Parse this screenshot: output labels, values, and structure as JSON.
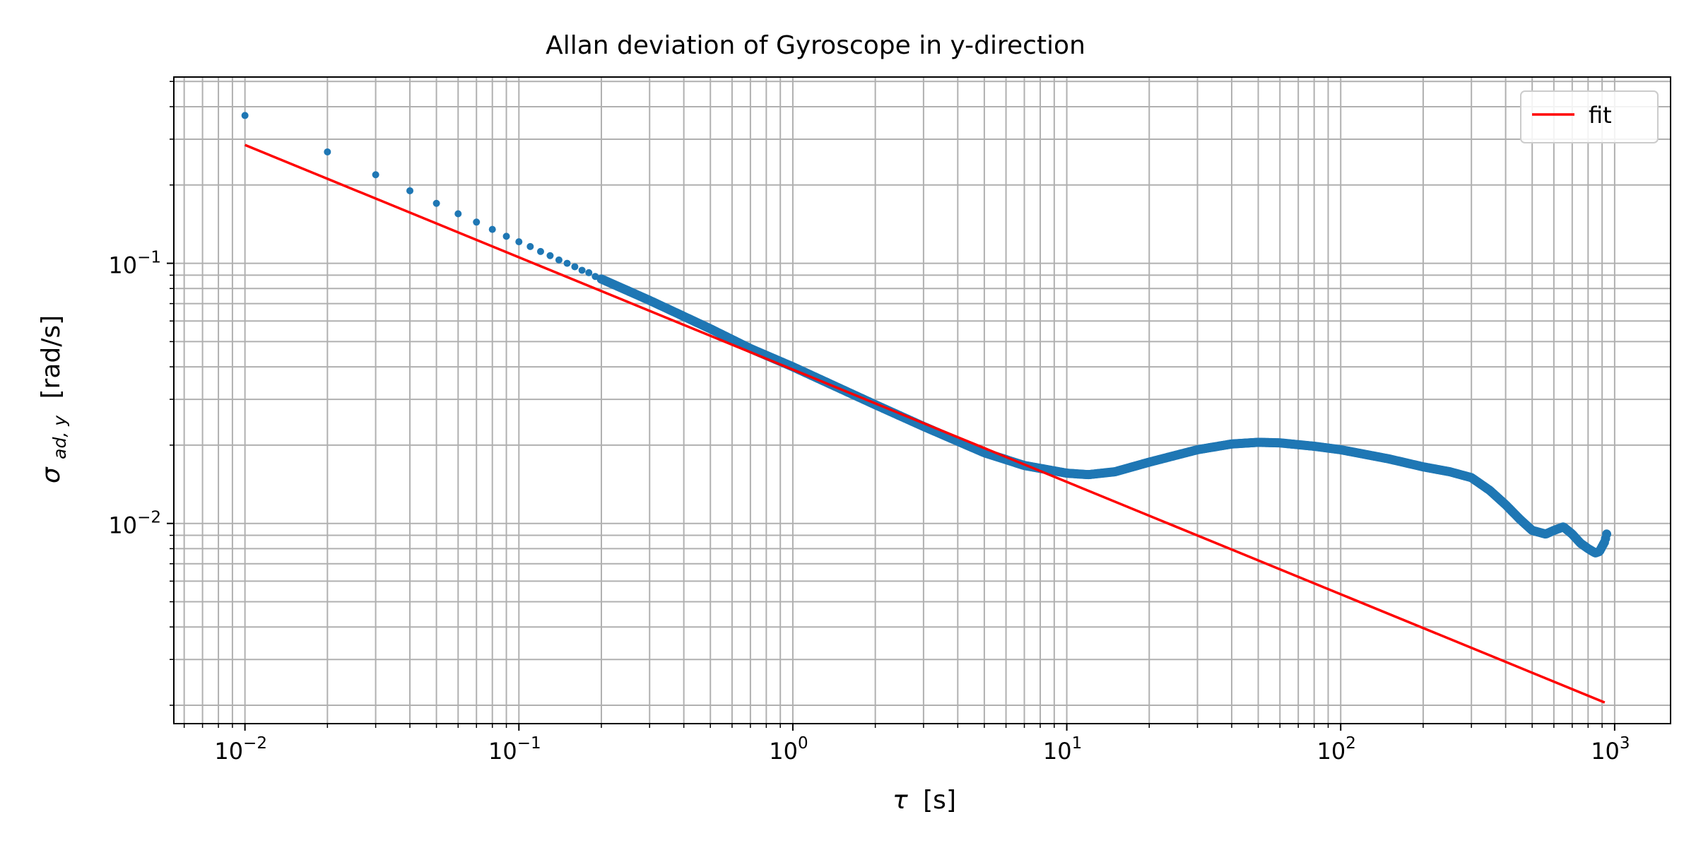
{
  "chart_data": {
    "type": "scatter",
    "title": "Allan deviation of Gyroscope in y-direction",
    "xlabel": {
      "main": "τ",
      "units": "[s]"
    },
    "ylabel": {
      "symbol": "σ",
      "subscript": "ad, y",
      "units": "[rad/s]"
    },
    "xscale": "log",
    "yscale": "log",
    "xlim": [
      0.0055,
      1600
    ],
    "ylim": [
      0.0017,
      0.52
    ],
    "grid": true,
    "grid_minor": true,
    "legend": {
      "placement": "top-right",
      "entries": [
        "fit"
      ]
    },
    "x_ticks": [
      {
        "value": 0.01,
        "base": "10",
        "exp": "−2"
      },
      {
        "value": 0.1,
        "base": "10",
        "exp": "−1"
      },
      {
        "value": 1,
        "base": "10",
        "exp": "0"
      },
      {
        "value": 10,
        "base": "10",
        "exp": "1"
      },
      {
        "value": 100,
        "base": "10",
        "exp": "2"
      },
      {
        "value": 1000,
        "base": "10",
        "exp": "3"
      }
    ],
    "y_ticks": [
      {
        "value": 0.1,
        "base": "10",
        "exp": "−1"
      },
      {
        "value": 0.01,
        "base": "10",
        "exp": "−2"
      }
    ],
    "series": [
      {
        "kind": "scatter",
        "color": "#1f77b4",
        "points": [
          [
            0.01,
            0.37
          ],
          [
            0.02,
            0.268
          ],
          [
            0.03,
            0.219
          ],
          [
            0.04,
            0.19
          ],
          [
            0.05,
            0.17
          ],
          [
            0.06,
            0.155
          ],
          [
            0.07,
            0.144
          ],
          [
            0.08,
            0.135
          ],
          [
            0.09,
            0.127
          ],
          [
            0.1,
            0.121
          ],
          [
            0.11,
            0.116
          ],
          [
            0.12,
            0.111
          ],
          [
            0.13,
            0.107
          ],
          [
            0.14,
            0.103
          ],
          [
            0.15,
            0.1
          ],
          [
            0.16,
            0.097
          ],
          [
            0.17,
            0.094
          ],
          [
            0.18,
            0.092
          ],
          [
            0.19,
            0.089
          ],
          [
            0.2,
            0.087
          ]
        ],
        "curve": [
          [
            0.2,
            0.087
          ],
          [
            0.3,
            0.072
          ],
          [
            0.5,
            0.056
          ],
          [
            0.7,
            0.047
          ],
          [
            1,
            0.04
          ],
          [
            2,
            0.0286
          ],
          [
            3,
            0.0236
          ],
          [
            5,
            0.0187
          ],
          [
            7,
            0.0167
          ],
          [
            10,
            0.0156
          ],
          [
            12,
            0.0154
          ],
          [
            15,
            0.0158
          ],
          [
            20,
            0.0172
          ],
          [
            30,
            0.0192
          ],
          [
            40,
            0.0202
          ],
          [
            50,
            0.0205
          ],
          [
            60,
            0.0204
          ],
          [
            80,
            0.0198
          ],
          [
            100,
            0.0192
          ],
          [
            150,
            0.0177
          ],
          [
            200,
            0.0165
          ],
          [
            250,
            0.0158
          ],
          [
            300,
            0.015
          ],
          [
            350,
            0.0134
          ],
          [
            400,
            0.0118
          ],
          [
            450,
            0.0104
          ],
          [
            500,
            0.0094
          ],
          [
            560,
            0.0091
          ],
          [
            600,
            0.0094
          ],
          [
            650,
            0.0097
          ],
          [
            700,
            0.0091
          ],
          [
            750,
            0.0084
          ],
          [
            800,
            0.008
          ],
          [
            850,
            0.0077
          ],
          [
            880,
            0.0078
          ],
          [
            920,
            0.0085
          ],
          [
            935,
            0.0091
          ]
        ]
      },
      {
        "kind": "line",
        "name": "fit",
        "color": "#ff0000",
        "points": [
          [
            0.01,
            0.285
          ],
          [
            920,
            0.00205
          ]
        ]
      }
    ]
  }
}
